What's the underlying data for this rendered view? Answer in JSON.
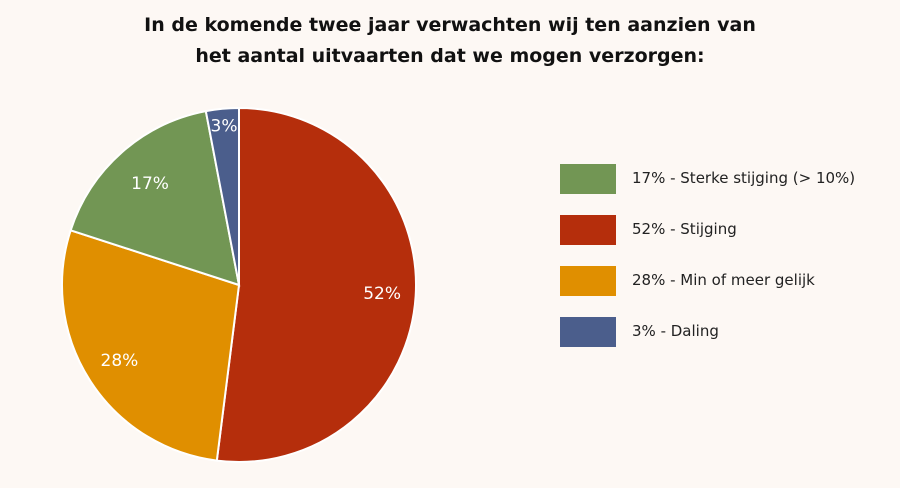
{
  "chart_data": {
    "type": "pie",
    "title_lines": [
      "In de komende twee jaar verwachten wij ten aanzien van",
      "het aantal uitvaarten dat we mogen verzorgen:"
    ],
    "slices": [
      {
        "name": "Stijging",
        "value": 52,
        "label": "52%",
        "legend": "52% - Stijging",
        "color": "#b52e0c"
      },
      {
        "name": "Min of meer gelijk",
        "value": 28,
        "label": "28%",
        "legend": "28% - Min of meer gelijk",
        "color": "#e08f00"
      },
      {
        "name": "Sterke stijging (> 10%)",
        "value": 17,
        "label": "17%",
        "legend": "17% - Sterke stijging (> 10%)",
        "color": "#729654"
      },
      {
        "name": "Daling",
        "value": 3,
        "label": "3%",
        "legend": "3% - Daling",
        "color": "#4b5e8c"
      }
    ],
    "legend_order": [
      2,
      0,
      1,
      3
    ],
    "legend_position": "right"
  }
}
